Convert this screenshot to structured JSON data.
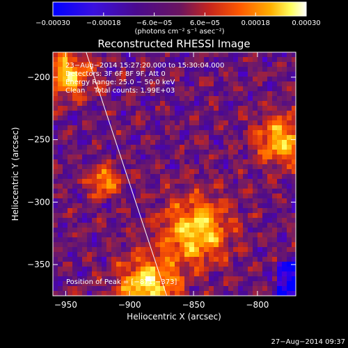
{
  "chart_data": {
    "type": "heatmap",
    "title": "Reconstructed RHESSI Image",
    "xlabel": "Heliocentric X (arcsec)",
    "ylabel": "Heliocentric Y (arcsec)",
    "xlim": [
      -960,
      -770
    ],
    "ylim": [
      -375,
      -180
    ],
    "x_ticks": [
      -950,
      -900,
      -850,
      -800
    ],
    "x_tick_labels": [
      "−950",
      "−900",
      "−850",
      "−800"
    ],
    "y_ticks": [
      -200,
      -250,
      -300,
      -350
    ],
    "y_tick_labels": [
      "−200",
      "−250",
      "−300",
      "−350"
    ],
    "colorbar": {
      "range": [
        -0.0003,
        0.0003
      ],
      "tick_values": [
        -0.0003,
        -0.00018,
        -6e-05,
        6e-05,
        0.00018,
        0.0003
      ],
      "tick_labels": [
        "−0.00030",
        "−0.00018",
        "−6.0e−05",
        "6.0e−05",
        "0.00018",
        "0.00030"
      ],
      "unit_label": "(photons cm⁻² s⁻¹ asec⁻²)",
      "colors": [
        "#0000ff",
        "#4a00d8",
        "#4a0a8e",
        "#7a1e5e",
        "#c8261c",
        "#ff5a00",
        "#ffb000",
        "#ffff60",
        "#ffffff"
      ]
    },
    "annotations": [
      "23−Aug−2014 15:27:20.000 to 15:30:04.000",
      "Detectors: 3F 6F 8F 9F, Att 0",
      "Energy Range: 25.0 − 50.0 keV",
      "Clean    Total counts: 1.99E+03"
    ],
    "peak_label": "Position of Peak = [−871,−373]",
    "peak": {
      "x": -871,
      "y": -373
    },
    "limb_line": {
      "x": [
        -934,
        -871
      ],
      "y": [
        -180,
        -375
      ]
    },
    "grid": false
  },
  "footer": {
    "timestamp": "27−Aug−2014 09:37"
  }
}
